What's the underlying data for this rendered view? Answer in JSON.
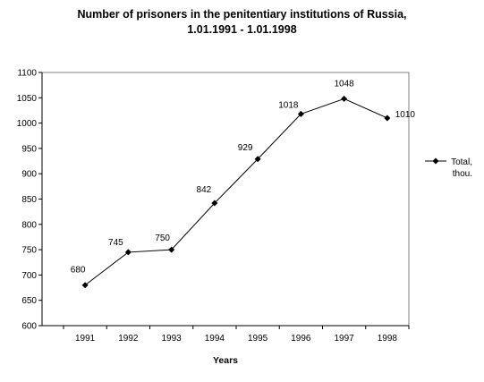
{
  "chart_data": {
    "type": "line",
    "title": "Number of prisoners in the penitentiary  institutions of Russia,",
    "subtitle": "1.01.1991 - 1.01.1998",
    "xlabel": "Years",
    "ylabel": "",
    "categories": [
      "1991",
      "1992",
      "1993",
      "1994",
      "1995",
      "1996",
      "1997",
      "1998"
    ],
    "series": [
      {
        "name": "Total, thou.",
        "legend_lines": [
          "Total,",
          "thou."
        ],
        "values": [
          680,
          745,
          750,
          842,
          929,
          1018,
          1048,
          1010
        ],
        "data_labels": [
          "680",
          "745",
          "750",
          "842",
          "929",
          "1018",
          "1048",
          "1010"
        ],
        "color": "#000000",
        "marker": "diamond"
      }
    ],
    "ylim": [
      600,
      1100
    ],
    "yticks": [
      "600",
      "650",
      "700",
      "750",
      "800",
      "850",
      "900",
      "950",
      "1000",
      "1050",
      "1100"
    ],
    "grid": false,
    "legend_position": "right"
  }
}
